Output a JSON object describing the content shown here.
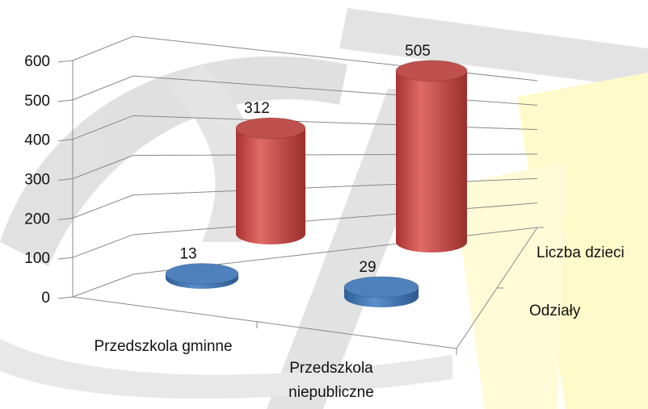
{
  "chart_data": {
    "type": "bar3d",
    "categories": [
      "Przedszkola gminne",
      "Przedszkola niepubliczne"
    ],
    "series": [
      {
        "name": "Odziały",
        "color": "#4f81bd",
        "values": [
          13,
          29
        ]
      },
      {
        "name": "Liczba dzieci",
        "color": "#c0504d",
        "values": [
          312,
          505
        ]
      }
    ],
    "ylim": [
      0,
      600
    ],
    "yticks": [
      0,
      100,
      200,
      300,
      400,
      500,
      600
    ],
    "grid": true
  }
}
